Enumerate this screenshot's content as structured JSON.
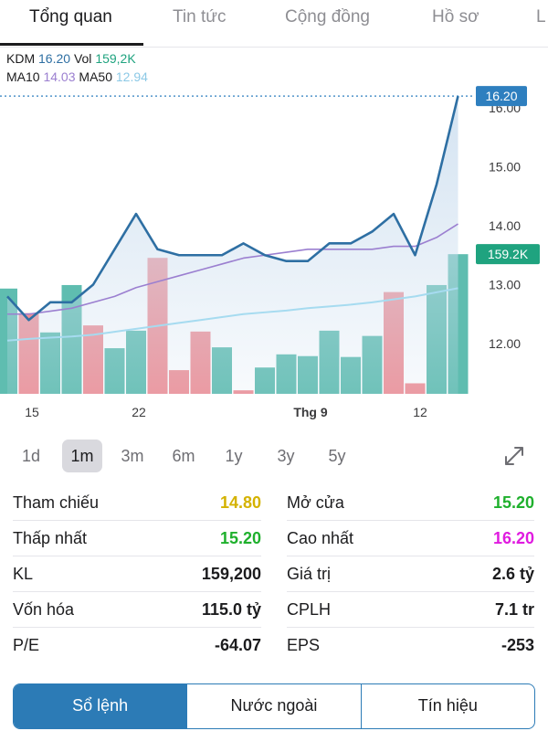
{
  "nav": {
    "tabs": [
      {
        "label": "Tổng quan",
        "active": true
      },
      {
        "label": "Tin tức"
      },
      {
        "label": "Cộng đồng"
      },
      {
        "label": "Hồ sơ"
      },
      {
        "label": "L"
      }
    ]
  },
  "legend": {
    "ticker": "KDM",
    "price": "16.20",
    "vol_label": "Vol",
    "vol_value": "159,2K",
    "ma10_label": "MA10",
    "ma10_value": "14.03",
    "ma50_label": "MA50",
    "ma50_value": "12.94"
  },
  "chart_data": {
    "type": "line",
    "x_ticks": [
      "15",
      "22",
      "Thg 9",
      "12"
    ],
    "y_ticks": [
      12.0,
      13.0,
      14.0,
      15.0,
      16.0
    ],
    "ylim": [
      11.2,
      16.4
    ],
    "last_price_tag": "16.20",
    "last_volume_tag": "159.2K",
    "price": [
      12.8,
      12.4,
      12.7,
      12.7,
      13.0,
      13.6,
      14.2,
      13.6,
      13.5,
      13.5,
      13.5,
      13.7,
      13.5,
      13.4,
      13.4,
      13.7,
      13.7,
      13.9,
      14.2,
      13.5,
      14.7,
      16.2
    ],
    "ma10": [
      12.5,
      12.5,
      12.55,
      12.6,
      12.7,
      12.8,
      12.95,
      13.05,
      13.15,
      13.25,
      13.35,
      13.45,
      13.5,
      13.55,
      13.6,
      13.6,
      13.6,
      13.6,
      13.65,
      13.65,
      13.8,
      14.03
    ],
    "ma50": [
      12.05,
      12.08,
      12.1,
      12.12,
      12.15,
      12.2,
      12.25,
      12.3,
      12.35,
      12.4,
      12.45,
      12.5,
      12.53,
      12.56,
      12.6,
      12.63,
      12.66,
      12.7,
      12.75,
      12.8,
      12.87,
      12.94
    ],
    "volume_k": [
      120,
      92,
      70,
      124,
      78,
      52,
      72,
      155,
      27,
      71,
      53,
      4,
      30,
      45,
      43,
      72,
      42,
      66,
      116,
      12,
      124,
      159.2
    ],
    "volume_up": [
      true,
      false,
      true,
      true,
      false,
      true,
      true,
      false,
      false,
      false,
      true,
      false,
      true,
      true,
      true,
      true,
      true,
      true,
      false,
      false,
      true,
      true
    ],
    "volume_max_k": 250,
    "colors": {
      "price_line": "#2e6fa3",
      "area_fill": "#cfe0f0",
      "ma10": "#9b7fd0",
      "ma50": "#a6dbf0",
      "vol_up": "#5fbdb0",
      "vol_down": "#ef8f96",
      "last_tag": "#2e7fbf",
      "vol_tag": "#1fa37f"
    }
  },
  "ranges": {
    "items": [
      "1d",
      "1m",
      "3m",
      "6m",
      "1y",
      "3y",
      "5y"
    ],
    "active": "1m"
  },
  "stats": {
    "left": [
      {
        "key": "Tham chiếu",
        "value": "14.80",
        "color": "#d4b200"
      },
      {
        "key": "Thấp nhất",
        "value": "15.20",
        "color": "#1fb02d"
      },
      {
        "key": "KL",
        "value": "159,200",
        "color": "#1c1c1e"
      },
      {
        "key": "Vốn hóa",
        "value": "115.0 tỷ",
        "color": "#1c1c1e"
      },
      {
        "key": "P/E",
        "value": "-64.07",
        "color": "#1c1c1e"
      }
    ],
    "right": [
      {
        "key": "Mở cửa",
        "value": "15.20",
        "color": "#1fb02d"
      },
      {
        "key": "Cao nhất",
        "value": "16.20",
        "color": "#e01be0"
      },
      {
        "key": "Giá trị",
        "value": "2.6 tỷ",
        "color": "#1c1c1e"
      },
      {
        "key": "CPLH",
        "value": "7.1 tr",
        "color": "#1c1c1e"
      },
      {
        "key": "EPS",
        "value": "-253",
        "color": "#1c1c1e"
      }
    ]
  },
  "segment": {
    "items": [
      "Sổ lệnh",
      "Nước ngoài",
      "Tín hiệu"
    ],
    "active": "Sổ lệnh",
    "accent": "#2c7bb6"
  }
}
